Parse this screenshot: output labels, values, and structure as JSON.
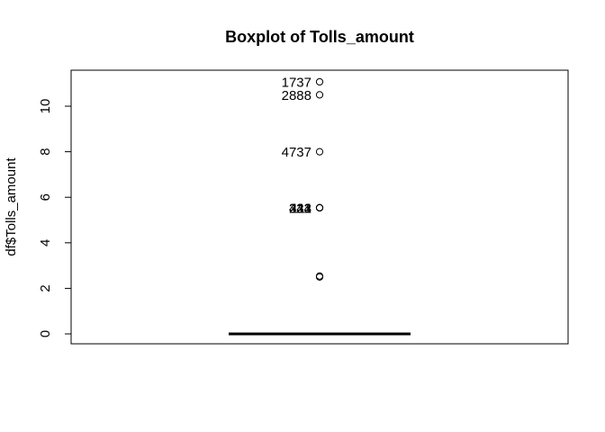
{
  "chart_data": {
    "type": "boxplot",
    "title": "Boxplot of Tolls_amount",
    "ylabel": "df$Tolls_amount",
    "xlabel": "",
    "ylim": [
      0,
      11.07
    ],
    "yticks": [
      0,
      2,
      4,
      6,
      8,
      10
    ],
    "ytick_labels": [
      "0",
      "2",
      "4",
      "6",
      "8",
      "10"
    ],
    "grid": false,
    "box": {
      "min": 0,
      "q1": 0,
      "median": 0,
      "q3": 0,
      "max": 0
    },
    "outliers": [
      {
        "value": 11.07,
        "label": "1737"
      },
      {
        "value": 10.5,
        "label": "2888"
      },
      {
        "value": 8.0,
        "label": "4737"
      },
      {
        "value": 5.54,
        "label": "333"
      },
      {
        "value": 5.54,
        "label": "444"
      },
      {
        "value": 5.54,
        "label": "222"
      },
      {
        "value": 5.54,
        "label": "111"
      },
      {
        "value": 2.54,
        "label": ""
      },
      {
        "value": 2.5,
        "label": ""
      }
    ]
  }
}
